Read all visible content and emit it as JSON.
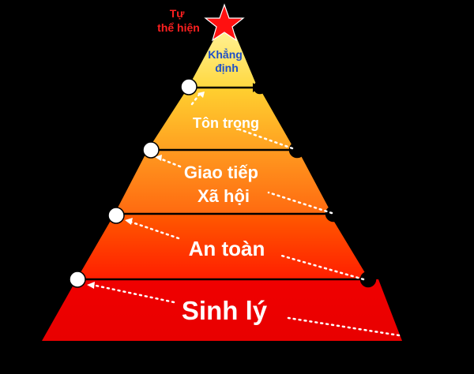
{
  "pyramid": {
    "levels": [
      {
        "id": "level-physiological",
        "lines": [
          "Sinh lý"
        ],
        "color_top": "#f00000",
        "color_bottom": "#e80000"
      },
      {
        "id": "level-safety",
        "lines": [
          "An toàn"
        ],
        "color_top": "#ff5a00",
        "color_bottom": "#ff1e00"
      },
      {
        "id": "level-social",
        "lines": [
          "Giao tiếp",
          "Xã hội"
        ],
        "color_top": "#ff9a20",
        "color_bottom": "#ff6a10"
      },
      {
        "id": "level-esteem",
        "lines": [
          "Tôn trọng"
        ],
        "color_top": "#ffd030",
        "color_bottom": "#ffa020"
      },
      {
        "id": "level-confirmation",
        "lines": [
          "Khẳng",
          "định"
        ],
        "color_top": "#fff090",
        "color_bottom": "#ffd840"
      }
    ],
    "apex": {
      "lines": [
        "Tự",
        "thể hiện"
      ],
      "label_color": "#ff2020",
      "star_color": "#ff1010"
    },
    "top_label_color": "#1e50c8"
  }
}
